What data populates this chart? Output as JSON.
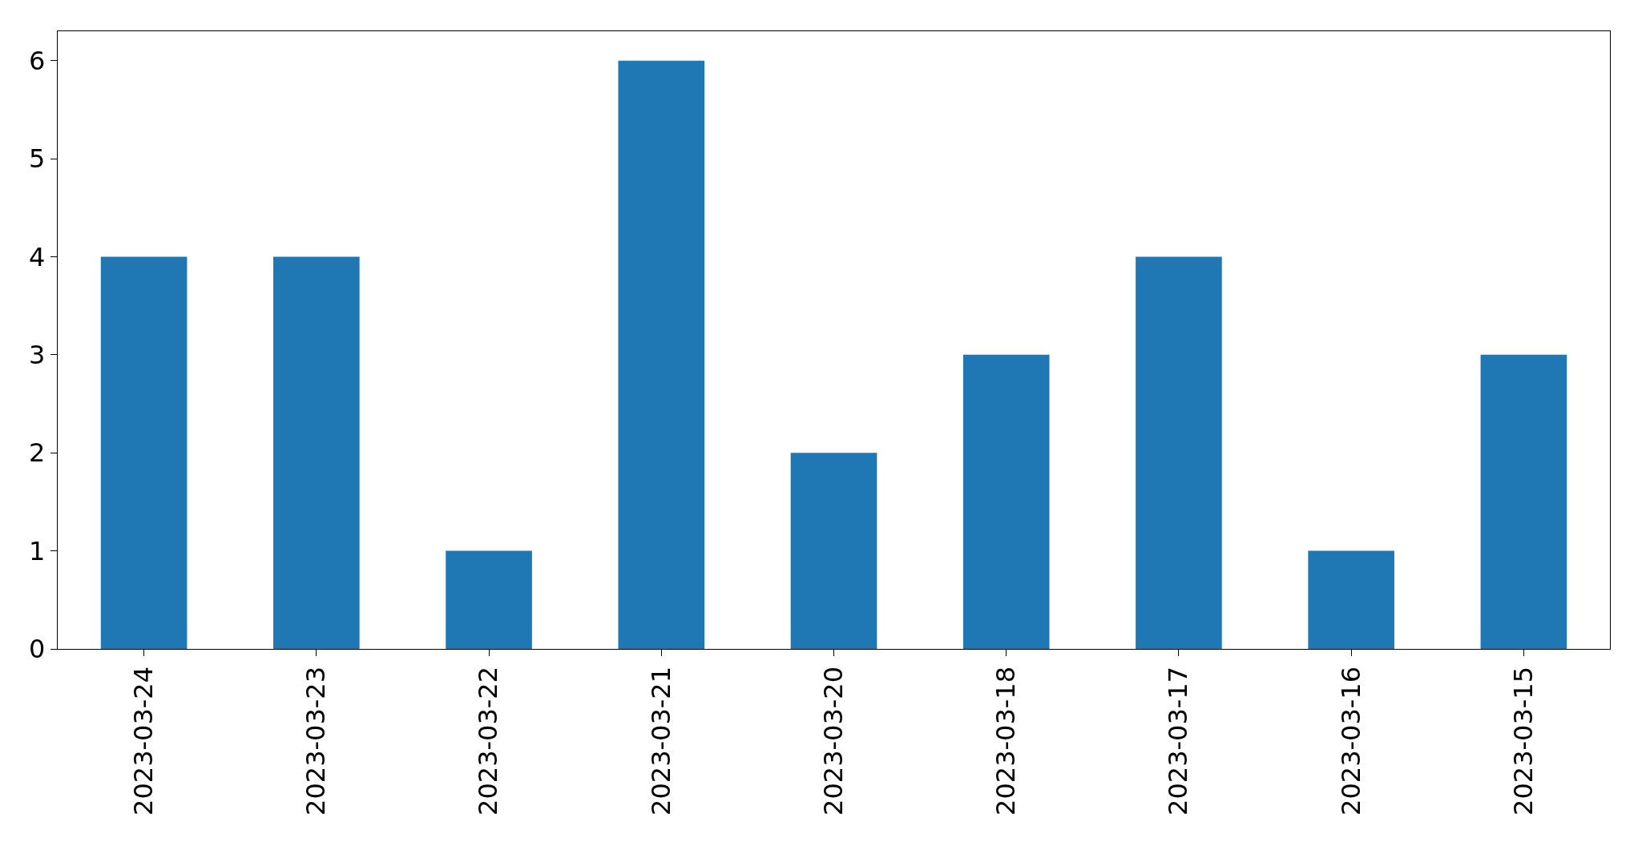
{
  "chart_data": {
    "type": "bar",
    "categories": [
      "2023-03-24",
      "2023-03-23",
      "2023-03-22",
      "2023-03-21",
      "2023-03-20",
      "2023-03-18",
      "2023-03-17",
      "2023-03-16",
      "2023-03-15"
    ],
    "values": [
      4,
      4,
      1,
      6,
      2,
      3,
      4,
      1,
      3
    ],
    "color": "#1f77b4",
    "ylim": [
      0,
      6.3
    ],
    "yticks": [
      0,
      1,
      2,
      3,
      4,
      5,
      6
    ],
    "grid": false,
    "legend": false
  }
}
